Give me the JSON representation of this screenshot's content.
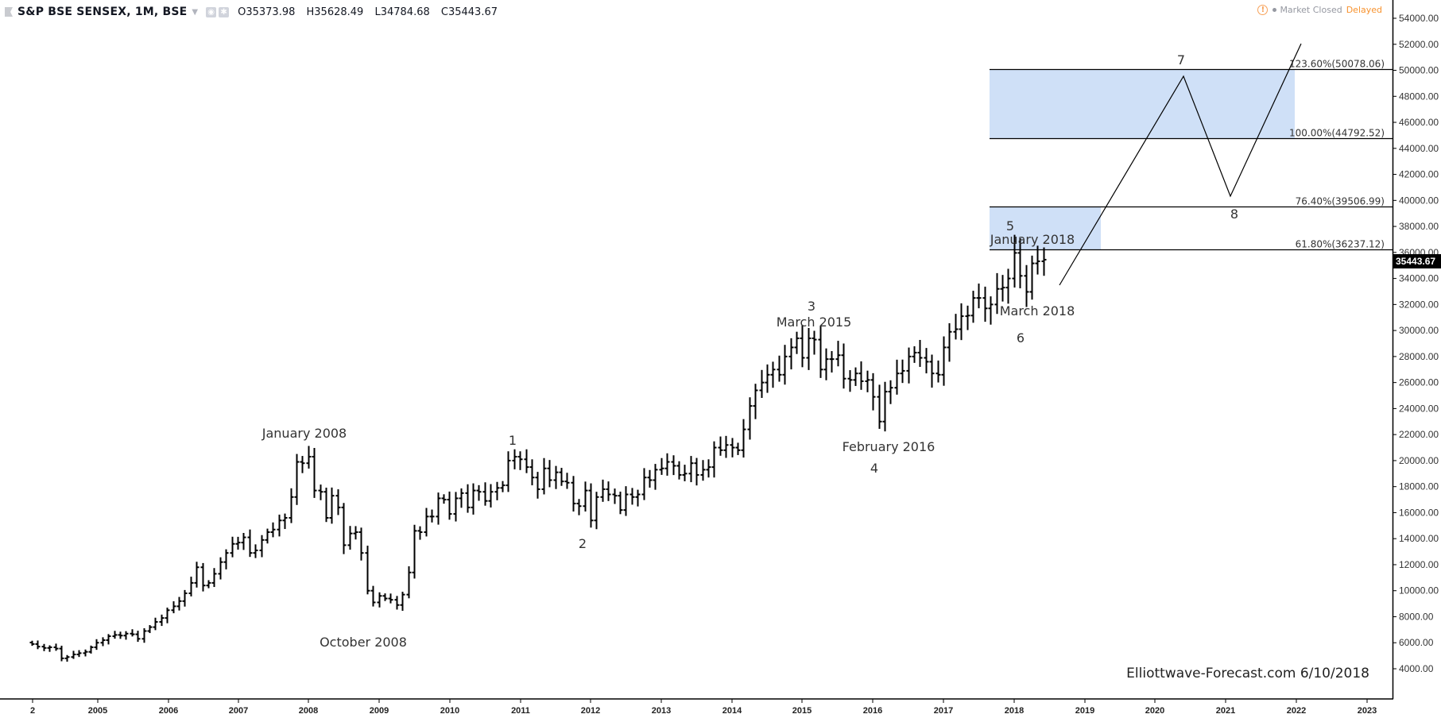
{
  "header": {
    "symbol": "S&P BSE SENSEX, 1M, BSE",
    "open": "O35373.98",
    "high": "H35628.49",
    "low": "L34784.68",
    "close": "C35443.67",
    "status_dot": "•",
    "market_status": "Market Closed",
    "delayed": "Delayed",
    "warn_glyph": "!"
  },
  "price_tag": "35443.67",
  "watermark": "Elliottwave-Forecast.com 6/10/2018",
  "colors": {
    "bars": "#000000",
    "fib_zone": "#cfe0f7",
    "warn": "#f7a25a",
    "delayed": "#f7922e",
    "price_tag_bg": "#000000"
  },
  "chart_data": {
    "type": "ohlc",
    "title": "S&P BSE SENSEX, 1M, BSE",
    "xlabel": "",
    "ylabel": "",
    "ylim": [
      3000,
      55000
    ],
    "x_ticks": [
      "2",
      "2005",
      "2006",
      "2007",
      "2008",
      "2009",
      "2010",
      "2011",
      "2012",
      "2013",
      "2014",
      "2015",
      "2016",
      "2017",
      "2018",
      "2019",
      "2020",
      "2021",
      "2022",
      "2023"
    ],
    "y_ticks": [
      "54000.00",
      "52000.00",
      "50000.00",
      "48000.00",
      "46000.00",
      "44000.00",
      "42000.00",
      "40000.00",
      "38000.00",
      "36000.00",
      "34000.00",
      "32000.00",
      "30000.00",
      "28000.00",
      "26000.00",
      "24000.00",
      "22000.00",
      "20000.00",
      "18000.00",
      "16000.00",
      "14000.00",
      "12000.00",
      "10000.00",
      "8000.00",
      "6000.00",
      "4000.00"
    ],
    "grid": false,
    "start": "2004-01",
    "monthly_close": [
      5900,
      5700,
      5600,
      5650,
      5550,
      4800,
      4900,
      5100,
      5200,
      5300,
      5650,
      6000,
      6200,
      6500,
      6600,
      6550,
      6700,
      6650,
      6300,
      6900,
      7200,
      7600,
      7900,
      8500,
      8800,
      9200,
      9800,
      10600,
      11800,
      10400,
      10600,
      11300,
      12200,
      12900,
      13600,
      13700,
      14100,
      12900,
      13100,
      13900,
      14500,
      14700,
      15400,
      15600,
      17200,
      19900,
      19800,
      20300,
      17700,
      17600,
      15600,
      17300,
      16400,
      13500,
      14400,
      14500,
      12900,
      10000,
      9100,
      9600,
      9400,
      9300,
      8900,
      9700,
      11400,
      14600,
      14500,
      15700,
      15700,
      17100,
      17000,
      15900,
      17100,
      17500,
      16400,
      17700,
      17600,
      16900,
      17600,
      17900,
      18100,
      20000,
      20300,
      20100,
      19500,
      18700,
      17800,
      19400,
      18500,
      19100,
      18400,
      18300,
      16700,
      16500,
      17700,
      15400,
      17200,
      17800,
      17400,
      17300,
      16200,
      17400,
      17200,
      17400,
      18700,
      18500,
      19300,
      19400,
      19900,
      19600,
      18900,
      19000,
      19800,
      18900,
      19300,
      19500,
      21000,
      20800,
      21200,
      21000,
      20800,
      22400,
      24200,
      25400,
      26000,
      26600,
      27000,
      26600,
      28000,
      28700,
      29400,
      27900,
      29400,
      29300,
      27000,
      27800,
      27800,
      28100,
      26300,
      26200,
      26700,
      26100,
      26200,
      24900,
      23000,
      25300,
      25600,
      26700,
      26900,
      28000,
      28300,
      27900,
      27600,
      26700,
      26600,
      28700,
      29900,
      30100,
      31100,
      31150,
      32500,
      32500,
      31700,
      32000,
      33200,
      33300,
      34000,
      35965,
      34200,
      32970,
      35160,
      35320,
      35443
    ]
  },
  "fib_levels": [
    {
      "label": "123.60%(50078.06)",
      "value": 50078.06
    },
    {
      "label": "100.00%(44792.52)",
      "value": 44792.52
    },
    {
      "label": "76.40%(39506.99)",
      "value": 39506.99
    },
    {
      "label": "61.80%(36237.12)",
      "value": 36237.12
    }
  ],
  "annotations": {
    "jan2008": "January 2008",
    "oct2008": "October 2008",
    "w1": "1",
    "w2": "2",
    "w3": "3",
    "mar2015": "March 2015",
    "feb2016": "February 2016",
    "w4": "4",
    "w5": "5",
    "jan2018": "January 2018",
    "mar2018": "March 2018",
    "w6": "6",
    "w7": "7",
    "w8": "8"
  }
}
